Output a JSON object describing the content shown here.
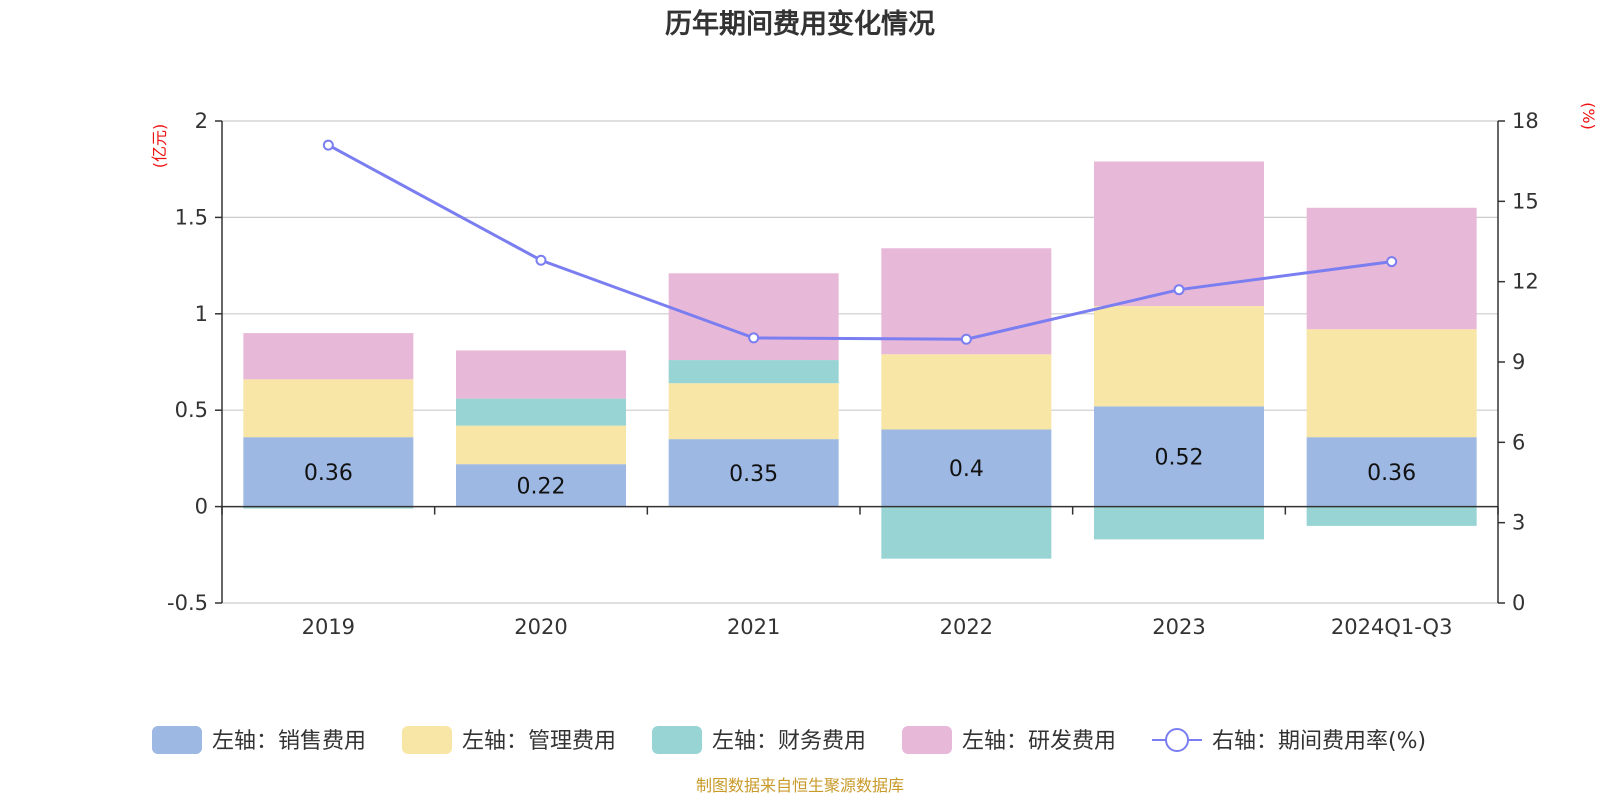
{
  "chart_data": {
    "type": "bar",
    "title": "历年期间费用变化情况",
    "stacked": true,
    "categories": [
      "2019",
      "2020",
      "2021",
      "2022",
      "2023",
      "2024Q1-Q3"
    ],
    "left_axis": {
      "unit_label": "(亿元)",
      "ylim": [
        -0.5,
        2
      ],
      "ticks": [
        "-0.5",
        "0",
        "0.5",
        "1",
        "1.5",
        "2"
      ]
    },
    "right_axis": {
      "unit_label": "(%)",
      "ylim": [
        0,
        18
      ],
      "ticks": [
        "0",
        "3",
        "6",
        "9",
        "12",
        "15",
        "18"
      ]
    },
    "series": [
      {
        "name": "左轴：销售费用",
        "axis": "left",
        "color": "#9db8e2",
        "values": [
          0.36,
          0.22,
          0.35,
          0.4,
          0.52,
          0.36
        ],
        "labels": [
          "0.36",
          "0.22",
          "0.35",
          "0.4",
          "0.52",
          "0.36"
        ]
      },
      {
        "name": "左轴：管理费用",
        "axis": "left",
        "color": "#f8e6a6",
        "values": [
          0.3,
          0.2,
          0.29,
          0.39,
          0.52,
          0.56
        ]
      },
      {
        "name": "左轴：财务费用",
        "axis": "left",
        "color": "#98d4d4",
        "values": [
          -0.01,
          0.14,
          0.12,
          -0.27,
          -0.17,
          -0.1
        ]
      },
      {
        "name": "左轴：研发费用",
        "axis": "left",
        "color": "#e8b8d8",
        "values": [
          0.24,
          0.25,
          0.45,
          0.55,
          0.75,
          0.63
        ]
      },
      {
        "name": "右轴：期间费用率(%)",
        "axis": "right",
        "type": "line",
        "color": "#7a7ef0",
        "values": [
          17.1,
          12.8,
          9.9,
          9.85,
          11.7,
          12.75
        ]
      }
    ],
    "grid": true,
    "legend_position": "bottom"
  },
  "source": "制图数据来自恒生聚源数据库"
}
